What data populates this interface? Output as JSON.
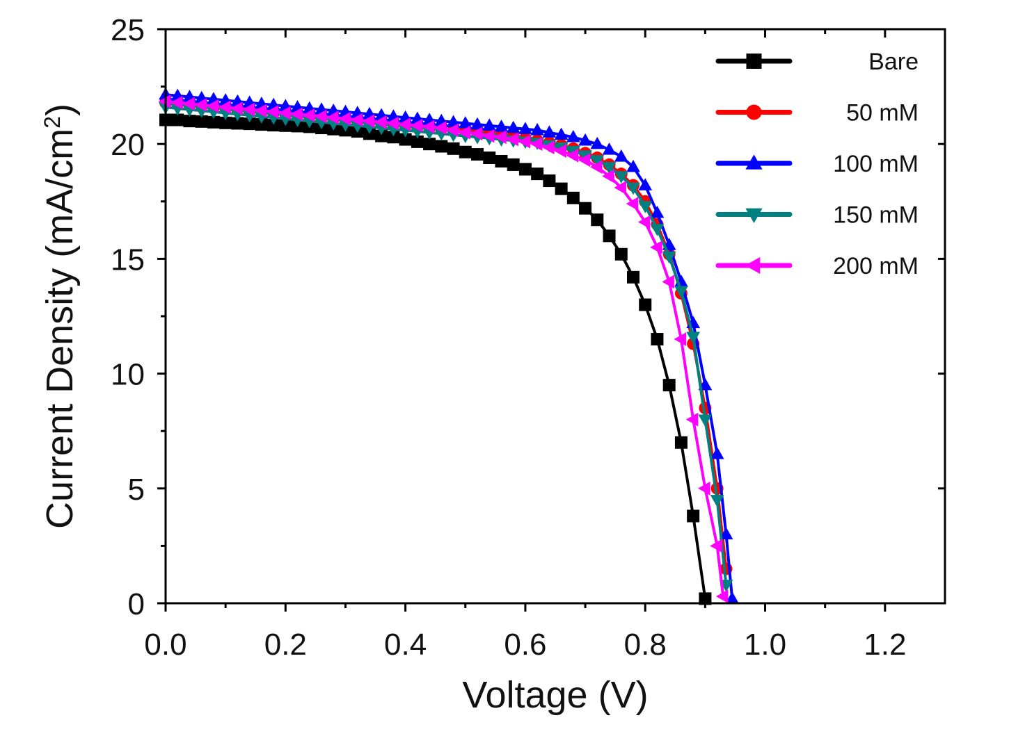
{
  "chart_data": {
    "type": "line",
    "title": "",
    "xlabel": "Voltage (V)",
    "ylabel": "Current Density (mA/cm",
    "ylabel_superscript": "2",
    "ylabel_close": ")",
    "xlim": [
      0.0,
      1.3
    ],
    "ylim": [
      0,
      25
    ],
    "xticks": [
      0.0,
      0.2,
      0.4,
      0.6,
      0.8,
      1.0,
      1.2
    ],
    "xtick_labels": [
      "0.0",
      "0.2",
      "0.4",
      "0.6",
      "0.8",
      "1.0",
      "1.2"
    ],
    "yticks": [
      0,
      5,
      10,
      15,
      20,
      25
    ],
    "ytick_labels": [
      "0",
      "5",
      "10",
      "15",
      "20",
      "25"
    ],
    "grid": false,
    "legend_position": "top-right",
    "series": [
      {
        "name": "Bare",
        "color": "#000000",
        "marker": "square",
        "points": [
          [
            0.0,
            21.05
          ],
          [
            0.02,
            21.05
          ],
          [
            0.04,
            21.0
          ],
          [
            0.06,
            20.98
          ],
          [
            0.08,
            20.95
          ],
          [
            0.1,
            20.92
          ],
          [
            0.12,
            20.9
          ],
          [
            0.14,
            20.88
          ],
          [
            0.16,
            20.85
          ],
          [
            0.18,
            20.82
          ],
          [
            0.2,
            20.8
          ],
          [
            0.22,
            20.78
          ],
          [
            0.24,
            20.75
          ],
          [
            0.26,
            20.7
          ],
          [
            0.28,
            20.65
          ],
          [
            0.3,
            20.6
          ],
          [
            0.32,
            20.55
          ],
          [
            0.34,
            20.45
          ],
          [
            0.36,
            20.35
          ],
          [
            0.38,
            20.3
          ],
          [
            0.4,
            20.2
          ],
          [
            0.42,
            20.1
          ],
          [
            0.44,
            20.0
          ],
          [
            0.46,
            19.9
          ],
          [
            0.48,
            19.8
          ],
          [
            0.5,
            19.65
          ],
          [
            0.52,
            19.55
          ],
          [
            0.54,
            19.4
          ],
          [
            0.56,
            19.25
          ],
          [
            0.58,
            19.1
          ],
          [
            0.6,
            18.9
          ],
          [
            0.62,
            18.7
          ],
          [
            0.64,
            18.4
          ],
          [
            0.66,
            18.05
          ],
          [
            0.68,
            17.65
          ],
          [
            0.7,
            17.2
          ],
          [
            0.72,
            16.7
          ],
          [
            0.74,
            16.0
          ],
          [
            0.76,
            15.2
          ],
          [
            0.78,
            14.2
          ],
          [
            0.8,
            13.0
          ],
          [
            0.82,
            11.5
          ],
          [
            0.84,
            9.5
          ],
          [
            0.86,
            7.0
          ],
          [
            0.88,
            3.8
          ],
          [
            0.9,
            0.2
          ]
        ]
      },
      {
        "name": "50 mM",
        "color": "#ff0000",
        "marker": "circle",
        "points": [
          [
            0.0,
            21.8
          ],
          [
            0.02,
            21.75
          ],
          [
            0.04,
            21.7
          ],
          [
            0.06,
            21.65
          ],
          [
            0.08,
            21.6
          ],
          [
            0.1,
            21.55
          ],
          [
            0.12,
            21.5
          ],
          [
            0.14,
            21.45
          ],
          [
            0.16,
            21.4
          ],
          [
            0.18,
            21.35
          ],
          [
            0.2,
            21.3
          ],
          [
            0.22,
            21.25
          ],
          [
            0.24,
            21.2
          ],
          [
            0.26,
            21.15
          ],
          [
            0.28,
            21.1
          ],
          [
            0.3,
            21.05
          ],
          [
            0.32,
            21.0
          ],
          [
            0.34,
            20.95
          ],
          [
            0.36,
            20.9
          ],
          [
            0.38,
            20.85
          ],
          [
            0.4,
            20.8
          ],
          [
            0.42,
            20.75
          ],
          [
            0.44,
            20.7
          ],
          [
            0.46,
            20.65
          ],
          [
            0.48,
            20.6
          ],
          [
            0.5,
            20.55
          ],
          [
            0.52,
            20.5
          ],
          [
            0.54,
            20.45
          ],
          [
            0.56,
            20.4
          ],
          [
            0.58,
            20.35
          ],
          [
            0.6,
            20.25
          ],
          [
            0.62,
            20.15
          ],
          [
            0.64,
            20.05
          ],
          [
            0.66,
            19.95
          ],
          [
            0.68,
            19.8
          ],
          [
            0.7,
            19.6
          ],
          [
            0.72,
            19.4
          ],
          [
            0.74,
            19.1
          ],
          [
            0.76,
            18.7
          ],
          [
            0.78,
            18.2
          ],
          [
            0.8,
            17.5
          ],
          [
            0.82,
            16.5
          ],
          [
            0.84,
            15.2
          ],
          [
            0.86,
            13.5
          ],
          [
            0.88,
            11.3
          ],
          [
            0.9,
            8.5
          ],
          [
            0.92,
            5.0
          ],
          [
            0.935,
            1.5
          ]
        ]
      },
      {
        "name": "100 mM",
        "color": "#0000ff",
        "marker": "triangle-up",
        "points": [
          [
            0.0,
            22.15
          ],
          [
            0.02,
            22.1
          ],
          [
            0.04,
            22.05
          ],
          [
            0.06,
            22.0
          ],
          [
            0.08,
            21.95
          ],
          [
            0.1,
            21.9
          ],
          [
            0.12,
            21.85
          ],
          [
            0.14,
            21.8
          ],
          [
            0.16,
            21.75
          ],
          [
            0.18,
            21.7
          ],
          [
            0.2,
            21.65
          ],
          [
            0.22,
            21.6
          ],
          [
            0.24,
            21.55
          ],
          [
            0.26,
            21.5
          ],
          [
            0.28,
            21.45
          ],
          [
            0.3,
            21.4
          ],
          [
            0.32,
            21.35
          ],
          [
            0.34,
            21.3
          ],
          [
            0.36,
            21.25
          ],
          [
            0.38,
            21.2
          ],
          [
            0.4,
            21.15
          ],
          [
            0.42,
            21.1
          ],
          [
            0.44,
            21.05
          ],
          [
            0.46,
            21.0
          ],
          [
            0.48,
            20.95
          ],
          [
            0.5,
            20.9
          ],
          [
            0.52,
            20.85
          ],
          [
            0.54,
            20.8
          ],
          [
            0.56,
            20.75
          ],
          [
            0.58,
            20.7
          ],
          [
            0.6,
            20.65
          ],
          [
            0.62,
            20.6
          ],
          [
            0.64,
            20.5
          ],
          [
            0.66,
            20.4
          ],
          [
            0.68,
            20.3
          ],
          [
            0.7,
            20.15
          ],
          [
            0.72,
            20.0
          ],
          [
            0.74,
            19.75
          ],
          [
            0.76,
            19.45
          ],
          [
            0.78,
            19.0
          ],
          [
            0.8,
            18.2
          ],
          [
            0.82,
            17.0
          ],
          [
            0.84,
            15.6
          ],
          [
            0.86,
            14.0
          ],
          [
            0.88,
            12.2
          ],
          [
            0.9,
            9.5
          ],
          [
            0.92,
            6.5
          ],
          [
            0.935,
            3.0
          ],
          [
            0.945,
            0.2
          ]
        ]
      },
      {
        "name": "150 mM",
        "color": "#008080",
        "marker": "triangle-down",
        "points": [
          [
            0.0,
            21.6
          ],
          [
            0.02,
            21.55
          ],
          [
            0.04,
            21.5
          ],
          [
            0.06,
            21.45
          ],
          [
            0.08,
            21.4
          ],
          [
            0.1,
            21.35
          ],
          [
            0.12,
            21.3
          ],
          [
            0.14,
            21.25
          ],
          [
            0.16,
            21.2
          ],
          [
            0.18,
            21.15
          ],
          [
            0.2,
            21.1
          ],
          [
            0.22,
            21.05
          ],
          [
            0.24,
            21.0
          ],
          [
            0.26,
            20.95
          ],
          [
            0.28,
            20.9
          ],
          [
            0.3,
            20.85
          ],
          [
            0.32,
            20.8
          ],
          [
            0.34,
            20.75
          ],
          [
            0.36,
            20.7
          ],
          [
            0.38,
            20.65
          ],
          [
            0.4,
            20.6
          ],
          [
            0.42,
            20.55
          ],
          [
            0.44,
            20.5
          ],
          [
            0.46,
            20.45
          ],
          [
            0.48,
            20.4
          ],
          [
            0.5,
            20.35
          ],
          [
            0.52,
            20.3
          ],
          [
            0.54,
            20.25
          ],
          [
            0.56,
            20.2
          ],
          [
            0.58,
            20.15
          ],
          [
            0.6,
            20.1
          ],
          [
            0.62,
            20.05
          ],
          [
            0.64,
            19.95
          ],
          [
            0.66,
            19.85
          ],
          [
            0.68,
            19.7
          ],
          [
            0.7,
            19.5
          ],
          [
            0.72,
            19.3
          ],
          [
            0.74,
            19.0
          ],
          [
            0.76,
            18.6
          ],
          [
            0.78,
            18.1
          ],
          [
            0.8,
            17.3
          ],
          [
            0.82,
            16.3
          ],
          [
            0.84,
            15.1
          ],
          [
            0.86,
            13.6
          ],
          [
            0.88,
            11.6
          ],
          [
            0.9,
            8.0
          ],
          [
            0.92,
            4.5
          ],
          [
            0.935,
            0.8
          ]
        ]
      },
      {
        "name": "200 mM",
        "color": "#ff00ff",
        "marker": "triangle-left",
        "points": [
          [
            0.0,
            21.85
          ],
          [
            0.02,
            21.8
          ],
          [
            0.04,
            21.75
          ],
          [
            0.06,
            21.7
          ],
          [
            0.08,
            21.65
          ],
          [
            0.1,
            21.6
          ],
          [
            0.12,
            21.55
          ],
          [
            0.14,
            21.5
          ],
          [
            0.16,
            21.45
          ],
          [
            0.18,
            21.4
          ],
          [
            0.2,
            21.35
          ],
          [
            0.22,
            21.3
          ],
          [
            0.24,
            21.25
          ],
          [
            0.26,
            21.2
          ],
          [
            0.28,
            21.15
          ],
          [
            0.3,
            21.1
          ],
          [
            0.32,
            21.05
          ],
          [
            0.34,
            21.0
          ],
          [
            0.36,
            20.95
          ],
          [
            0.38,
            20.9
          ],
          [
            0.4,
            20.85
          ],
          [
            0.42,
            20.8
          ],
          [
            0.44,
            20.75
          ],
          [
            0.46,
            20.7
          ],
          [
            0.48,
            20.6
          ],
          [
            0.5,
            20.5
          ],
          [
            0.52,
            20.45
          ],
          [
            0.54,
            20.35
          ],
          [
            0.56,
            20.3
          ],
          [
            0.58,
            20.2
          ],
          [
            0.6,
            20.1
          ],
          [
            0.62,
            20.0
          ],
          [
            0.64,
            19.85
          ],
          [
            0.66,
            19.7
          ],
          [
            0.68,
            19.5
          ],
          [
            0.7,
            19.3
          ],
          [
            0.72,
            19.0
          ],
          [
            0.74,
            18.6
          ],
          [
            0.76,
            18.1
          ],
          [
            0.78,
            17.4
          ],
          [
            0.8,
            16.6
          ],
          [
            0.82,
            15.5
          ],
          [
            0.84,
            14.0
          ],
          [
            0.86,
            11.5
          ],
          [
            0.88,
            8.0
          ],
          [
            0.9,
            5.0
          ],
          [
            0.92,
            2.5
          ],
          [
            0.93,
            0.3
          ]
        ]
      }
    ]
  }
}
